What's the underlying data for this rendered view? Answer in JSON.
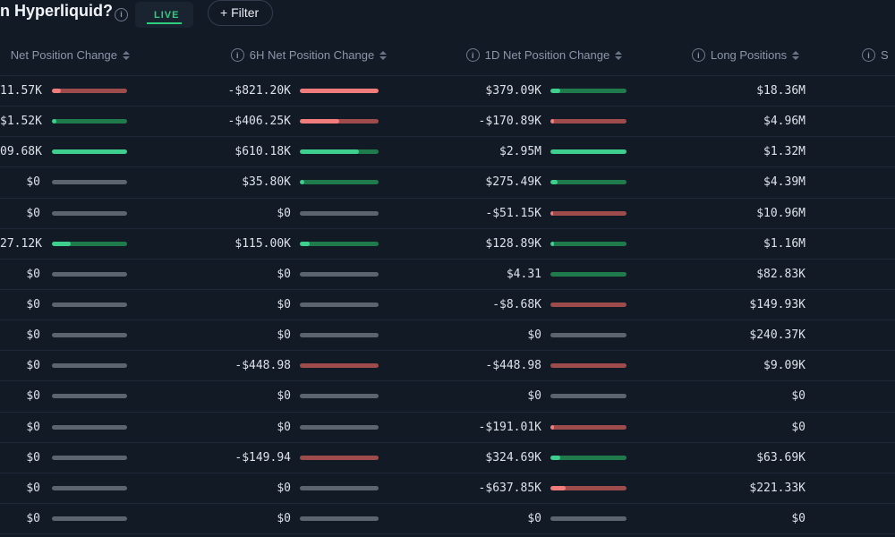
{
  "topbar": {
    "title": "n Hyperliquid?",
    "live_label": "LIVE",
    "filter_label": "+ Filter"
  },
  "colors": {
    "background": "#121a26",
    "positive_fill": "#3ecf8e",
    "positive_track": "#1f7a4c",
    "negative_fill": "#f17c7c",
    "negative_track": "#9d4b4b",
    "zero_track": "#5c6470",
    "live_green": "#2ecc7f"
  },
  "table": {
    "headers": [
      {
        "label": "Net Position Change",
        "info": false,
        "sort": true
      },
      {
        "label": "6H Net Position Change",
        "info": true,
        "sort": true
      },
      {
        "label": "1D Net Position Change",
        "info": true,
        "sort": true
      },
      {
        "label": "Long Positions",
        "info": true,
        "sort": true
      },
      {
        "label": "S",
        "info": true,
        "sort": false
      }
    ],
    "rows": [
      {
        "c1": {
          "value": "11.57K",
          "sign": "neg",
          "fill": 12
        },
        "c2": {
          "value": "-$821.20K",
          "sign": "neg",
          "fill": 100
        },
        "c3": {
          "value": "$379.09K",
          "sign": "pos",
          "fill": 13
        },
        "c4": {
          "value": "$18.36M"
        }
      },
      {
        "c1": {
          "value": "$1.52K",
          "sign": "pos",
          "fill": 6
        },
        "c2": {
          "value": "-$406.25K",
          "sign": "neg",
          "fill": 50
        },
        "c3": {
          "value": "-$170.89K",
          "sign": "neg",
          "fill": 5
        },
        "c4": {
          "value": "$4.96M"
        }
      },
      {
        "c1": {
          "value": "09.68K",
          "sign": "pos",
          "fill": 100
        },
        "c2": {
          "value": "$610.18K",
          "sign": "pos",
          "fill": 75
        },
        "c3": {
          "value": "$2.95M",
          "sign": "pos",
          "fill": 100
        },
        "c4": {
          "value": "$1.32M"
        }
      },
      {
        "c1": {
          "value": "$0",
          "sign": "zero",
          "fill": 0
        },
        "c2": {
          "value": "$35.80K",
          "sign": "pos",
          "fill": 6
        },
        "c3": {
          "value": "$275.49K",
          "sign": "pos",
          "fill": 9
        },
        "c4": {
          "value": "$4.39M"
        }
      },
      {
        "c1": {
          "value": "$0",
          "sign": "zero",
          "fill": 0
        },
        "c2": {
          "value": "$0",
          "sign": "zero",
          "fill": 0
        },
        "c3": {
          "value": "-$51.15K",
          "sign": "neg",
          "fill": 3
        },
        "c4": {
          "value": "$10.96M"
        }
      },
      {
        "c1": {
          "value": "27.12K",
          "sign": "pos",
          "fill": 25
        },
        "c2": {
          "value": "$115.00K",
          "sign": "pos",
          "fill": 13
        },
        "c3": {
          "value": "$128.89K",
          "sign": "pos",
          "fill": 5
        },
        "c4": {
          "value": "$1.16M"
        }
      },
      {
        "c1": {
          "value": "$0",
          "sign": "zero",
          "fill": 0
        },
        "c2": {
          "value": "$0",
          "sign": "zero",
          "fill": 0
        },
        "c3": {
          "value": "$4.31",
          "sign": "pos",
          "fill": 0
        },
        "c4": {
          "value": "$82.83K"
        }
      },
      {
        "c1": {
          "value": "$0",
          "sign": "zero",
          "fill": 0
        },
        "c2": {
          "value": "$0",
          "sign": "zero",
          "fill": 0
        },
        "c3": {
          "value": "-$8.68K",
          "sign": "neg",
          "fill": 0
        },
        "c4": {
          "value": "$149.93K"
        }
      },
      {
        "c1": {
          "value": "$0",
          "sign": "zero",
          "fill": 0
        },
        "c2": {
          "value": "$0",
          "sign": "zero",
          "fill": 0
        },
        "c3": {
          "value": "$0",
          "sign": "zero",
          "fill": 0
        },
        "c4": {
          "value": "$240.37K"
        }
      },
      {
        "c1": {
          "value": "$0",
          "sign": "zero",
          "fill": 0
        },
        "c2": {
          "value": "-$448.98",
          "sign": "neg",
          "fill": 0
        },
        "c3": {
          "value": "-$448.98",
          "sign": "neg",
          "fill": 0
        },
        "c4": {
          "value": "$9.09K"
        }
      },
      {
        "c1": {
          "value": "$0",
          "sign": "zero",
          "fill": 0
        },
        "c2": {
          "value": "$0",
          "sign": "zero",
          "fill": 0
        },
        "c3": {
          "value": "$0",
          "sign": "zero",
          "fill": 0
        },
        "c4": {
          "value": "$0"
        }
      },
      {
        "c1": {
          "value": "$0",
          "sign": "zero",
          "fill": 0
        },
        "c2": {
          "value": "$0",
          "sign": "zero",
          "fill": 0
        },
        "c3": {
          "value": "-$191.01K",
          "sign": "neg",
          "fill": 5
        },
        "c4": {
          "value": "$0"
        }
      },
      {
        "c1": {
          "value": "$0",
          "sign": "zero",
          "fill": 0
        },
        "c2": {
          "value": "-$149.94",
          "sign": "neg",
          "fill": 0
        },
        "c3": {
          "value": "$324.69K",
          "sign": "pos",
          "fill": 13
        },
        "c4": {
          "value": "$63.69K"
        }
      },
      {
        "c1": {
          "value": "$0",
          "sign": "zero",
          "fill": 0
        },
        "c2": {
          "value": "$0",
          "sign": "zero",
          "fill": 0
        },
        "c3": {
          "value": "-$637.85K",
          "sign": "neg",
          "fill": 20
        },
        "c4": {
          "value": "$221.33K"
        }
      },
      {
        "c1": {
          "value": "$0",
          "sign": "zero",
          "fill": 0
        },
        "c2": {
          "value": "$0",
          "sign": "zero",
          "fill": 0
        },
        "c3": {
          "value": "$0",
          "sign": "zero",
          "fill": 0
        },
        "c4": {
          "value": "$0"
        }
      }
    ]
  }
}
